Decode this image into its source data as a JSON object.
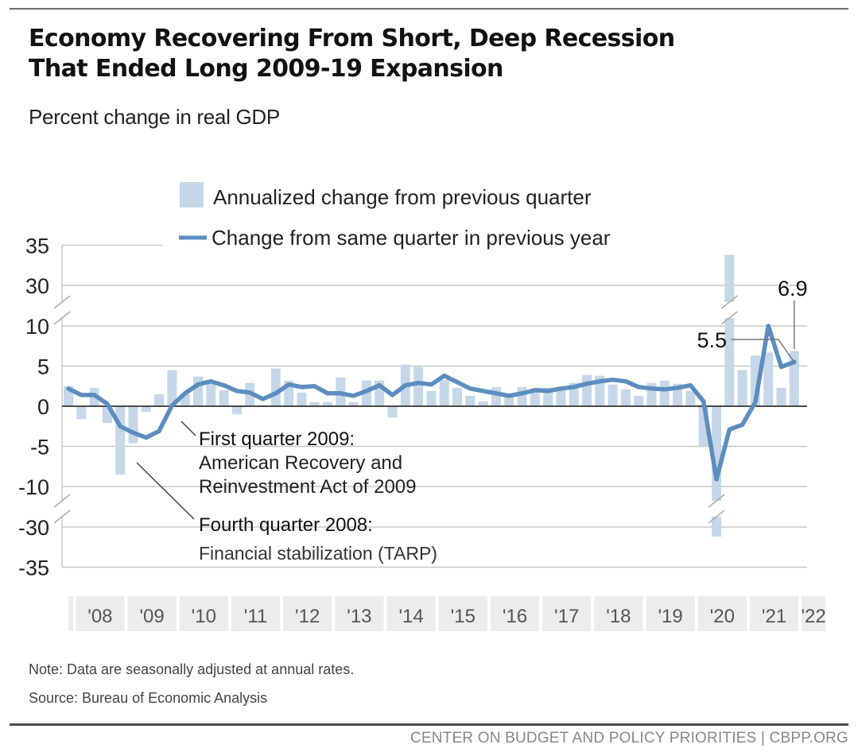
{
  "header": {
    "title_line1": "Economy Recovering From Short, Deep Recession",
    "title_line2": "That Ended Long 2009-19 Expansion",
    "subtitle": "Percent change in real GDP"
  },
  "footer": {
    "note": "Note: Data are seasonally adjusted at annual rates.",
    "source": "Source: Bureau of Economic Analysis",
    "credit": "CENTER ON BUDGET AND POLICY PRIORITIES | CBPP.ORG"
  },
  "colors": {
    "bar": "#c5d7e8",
    "line": "#5b8dc0",
    "grid": "#c8c8c8",
    "zero": "#333333",
    "year_box": "#ececec"
  },
  "chart_data": {
    "type": "bar+line",
    "title": "Economy Recovering From Short, Deep Recession That Ended Long 2009-19 Expansion",
    "subtitle": "Percent change in real GDP",
    "xlabel": "",
    "ylabel": "",
    "grid": true,
    "legend_position": "top",
    "y_axis_broken": true,
    "y_segments": [
      [
        30,
        35
      ],
      [
        -10,
        10
      ],
      [
        -35,
        -30
      ]
    ],
    "y_ticks": [
      "35",
      "30",
      "10",
      "5",
      "0",
      "-5",
      "-10",
      "-30",
      "-35"
    ],
    "y_tick_values": [
      35,
      30,
      10,
      5,
      0,
      -5,
      -10,
      -30,
      -35
    ],
    "x_tick_labels": [
      "'08",
      "'09",
      "'10",
      "'11",
      "'12",
      "'13",
      "'14",
      "'15",
      "'16",
      "'17",
      "'18",
      "'19",
      "'20",
      "'21",
      "'22"
    ],
    "x": [
      "2007Q4",
      "2008Q1",
      "2008Q2",
      "2008Q3",
      "2008Q4",
      "2009Q1",
      "2009Q2",
      "2009Q3",
      "2009Q4",
      "2010Q1",
      "2010Q2",
      "2010Q3",
      "2010Q4",
      "2011Q1",
      "2011Q2",
      "2011Q3",
      "2011Q4",
      "2012Q1",
      "2012Q2",
      "2012Q3",
      "2012Q4",
      "2013Q1",
      "2013Q2",
      "2013Q3",
      "2013Q4",
      "2014Q1",
      "2014Q2",
      "2014Q3",
      "2014Q4",
      "2015Q1",
      "2015Q2",
      "2015Q3",
      "2015Q4",
      "2016Q1",
      "2016Q2",
      "2016Q3",
      "2016Q4",
      "2017Q1",
      "2017Q2",
      "2017Q3",
      "2017Q4",
      "2018Q1",
      "2018Q2",
      "2018Q3",
      "2018Q4",
      "2019Q1",
      "2019Q2",
      "2019Q3",
      "2019Q4",
      "2020Q1",
      "2020Q2",
      "2020Q3",
      "2020Q4",
      "2021Q1",
      "2021Q2",
      "2021Q3",
      "2021Q4"
    ],
    "series": [
      {
        "name": "Annualized change from previous quarter",
        "kind": "bar",
        "values": [
          2.5,
          -1.6,
          2.3,
          -2.1,
          -8.5,
          -4.6,
          -0.7,
          1.5,
          4.5,
          1.5,
          3.7,
          3.0,
          2.0,
          -1.0,
          2.9,
          -0.1,
          4.7,
          3.2,
          1.7,
          0.5,
          0.5,
          3.6,
          0.5,
          3.2,
          3.2,
          -1.4,
          5.2,
          4.9,
          1.9,
          3.3,
          2.3,
          1.3,
          0.6,
          2.4,
          1.2,
          2.4,
          2.0,
          2.3,
          2.2,
          2.9,
          3.9,
          3.8,
          2.7,
          2.1,
          1.3,
          2.9,
          3.2,
          2.8,
          1.9,
          -5.1,
          -31.2,
          33.8,
          4.5,
          6.3,
          6.7,
          2.3,
          6.9
        ]
      },
      {
        "name": "Change from same quarter in previous year",
        "kind": "line",
        "values": [
          2.2,
          1.4,
          1.4,
          0.3,
          -2.5,
          -3.3,
          -3.9,
          -3.1,
          0.1,
          1.6,
          2.7,
          3.1,
          2.6,
          1.9,
          1.7,
          0.9,
          1.6,
          2.7,
          2.4,
          2.5,
          1.6,
          1.6,
          1.3,
          1.9,
          2.6,
          1.4,
          2.6,
          2.9,
          2.7,
          3.8,
          3.0,
          2.2,
          1.9,
          1.6,
          1.3,
          1.6,
          2.0,
          1.9,
          2.2,
          2.4,
          2.8,
          3.1,
          3.3,
          3.1,
          2.4,
          2.2,
          2.1,
          2.3,
          2.6,
          0.6,
          -9.1,
          -2.9,
          -2.3,
          0.5,
          12.2,
          4.9,
          5.5
        ]
      }
    ],
    "annotations": [
      {
        "label": "6.9",
        "target": "2021Q4 quarterly bar"
      },
      {
        "label": "5.5",
        "target": "2021Q4 year-over-year line"
      },
      {
        "title": "First quarter 2009:",
        "text_lines": [
          "American Recovery and",
          "Reinvestment Act of 2009"
        ],
        "target": "2009Q1"
      },
      {
        "title": "Fourth quarter 2008:",
        "text_lines": [
          "Financial stabilization (TARP)"
        ],
        "target": "2008Q4"
      }
    ]
  }
}
